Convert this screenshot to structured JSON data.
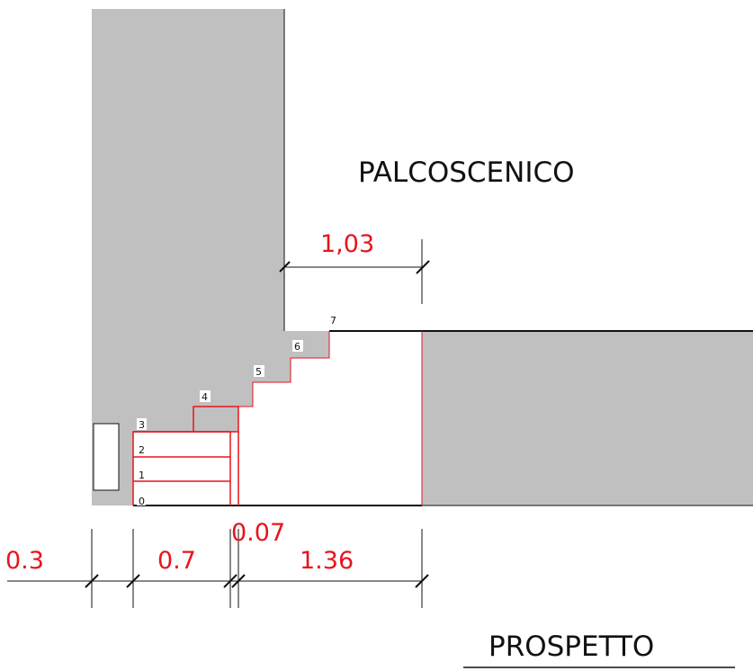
{
  "labels": {
    "stage": "PALCOSCENICO",
    "view": "PROSPETTO"
  },
  "dimensions": {
    "top_width": "1,03",
    "d1": "0.3",
    "d2": "0.7",
    "d3": "0.07",
    "d4": "1.36"
  },
  "steps": [
    "0",
    "1",
    "2",
    "3",
    "4",
    "5",
    "6",
    "7"
  ],
  "colors": {
    "wall_fill": "#c0c0c0",
    "dimension": "#e8141c",
    "line": "#111111",
    "background": "#ffffff"
  }
}
